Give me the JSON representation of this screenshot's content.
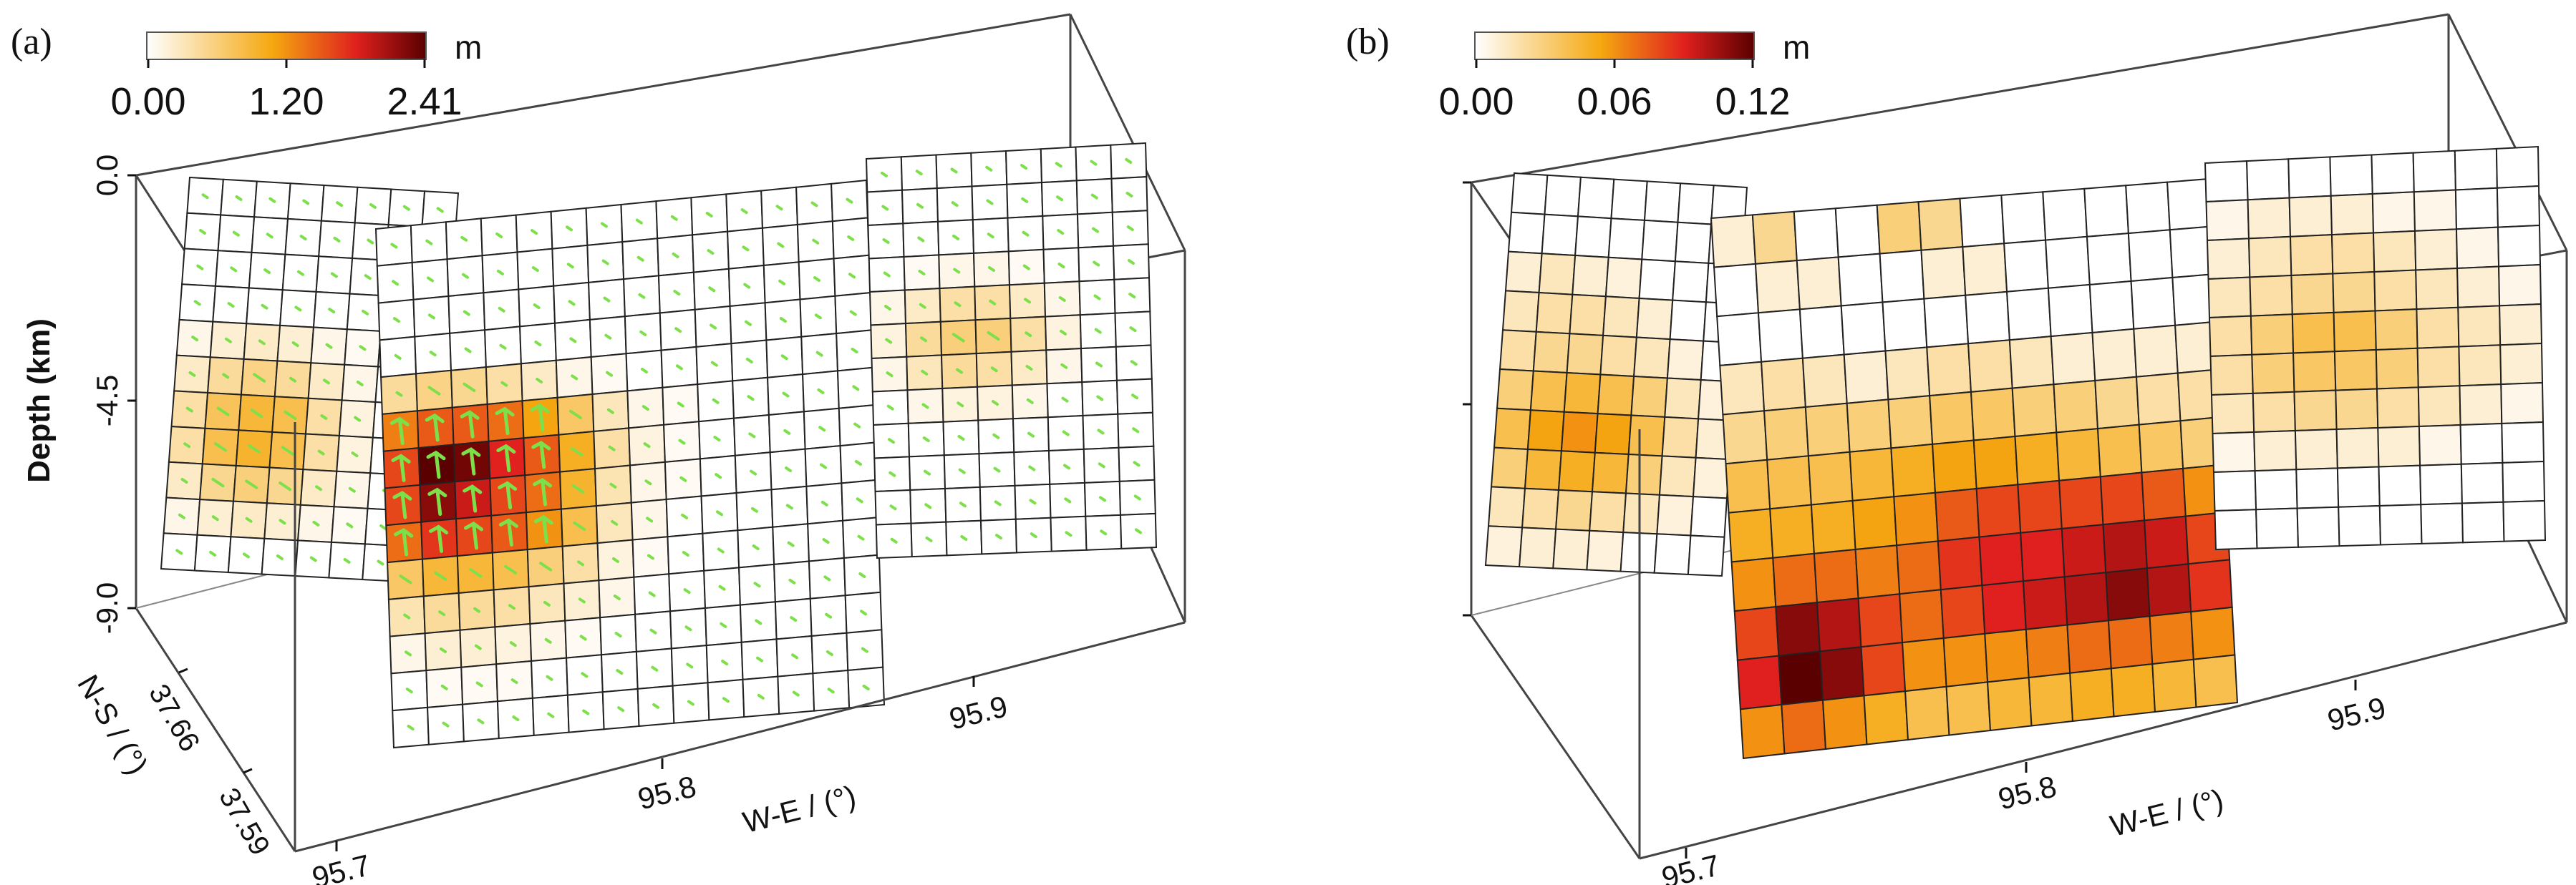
{
  "chart_data": [
    {
      "panel": "(a)",
      "type": "heatmap",
      "colorbar": {
        "unit": "m",
        "ticks": [
          "0.00",
          "1.20",
          "2.41"
        ],
        "range": [
          0,
          2.41
        ],
        "colors": [
          "#ffffff",
          "#f5a810",
          "#e0201e",
          "#5a0000"
        ]
      },
      "z_axis": {
        "label": "Depth (km)",
        "ticks": [
          "0.0",
          "-4.5",
          "-9.0"
        ]
      },
      "y_axis": {
        "label": "N-S / (°)",
        "ticks": [
          "37.66",
          "37.59"
        ]
      },
      "x_axis": {
        "label": "W-E / (°)",
        "ticks": [
          "95.7",
          "95.8",
          "95.9"
        ]
      },
      "slip_vectors": true,
      "segments": [
        {
          "name": "west",
          "cols": 8,
          "rows": 11,
          "values": [
            [
              0,
              0,
              0,
              0,
              0,
              0,
              0,
              0
            ],
            [
              0,
              0,
              0,
              0,
              0,
              0,
              0,
              0
            ],
            [
              0,
              0,
              0,
              0,
              0,
              0,
              0,
              0
            ],
            [
              0,
              0,
              0,
              0,
              0,
              0,
              0,
              0
            ],
            [
              0.1,
              0.2,
              0.25,
              0.2,
              0.1,
              0.05,
              0,
              0
            ],
            [
              0.25,
              0.45,
              0.55,
              0.45,
              0.25,
              0.1,
              0,
              0
            ],
            [
              0.4,
              0.75,
              0.9,
              0.8,
              0.4,
              0.15,
              0,
              0
            ],
            [
              0.4,
              0.8,
              0.95,
              0.8,
              0.4,
              0.15,
              0,
              0
            ],
            [
              0.25,
              0.5,
              0.6,
              0.5,
              0.25,
              0.1,
              0,
              0
            ],
            [
              0.1,
              0.2,
              0.25,
              0.2,
              0.1,
              0.05,
              0,
              0
            ],
            [
              0,
              0,
              0,
              0,
              0,
              0,
              0,
              0
            ]
          ]
        },
        {
          "name": "central",
          "cols": 14,
          "rows": 14,
          "values": [
            [
              0,
              0,
              0,
              0,
              0,
              0,
              0,
              0,
              0,
              0,
              0,
              0,
              0,
              0
            ],
            [
              0,
              0,
              0,
              0,
              0,
              0,
              0,
              0,
              0,
              0,
              0,
              0,
              0,
              0
            ],
            [
              0,
              0,
              0,
              0,
              0,
              0,
              0,
              0,
              0,
              0,
              0,
              0,
              0,
              0
            ],
            [
              0,
              0,
              0,
              0,
              0,
              0,
              0,
              0,
              0,
              0,
              0,
              0,
              0,
              0
            ],
            [
              0.45,
              0.55,
              0.5,
              0.4,
              0.25,
              0.1,
              0.05,
              0,
              0,
              0,
              0,
              0,
              0,
              0
            ],
            [
              1.3,
              1.5,
              1.5,
              1.4,
              1.1,
              0.7,
              0.3,
              0.1,
              0.05,
              0,
              0,
              0,
              0,
              0
            ],
            [
              1.6,
              2.41,
              2.3,
              1.8,
              1.5,
              1.0,
              0.4,
              0.15,
              0.05,
              0,
              0,
              0,
              0,
              0
            ],
            [
              1.6,
              2.2,
              1.9,
              1.6,
              1.4,
              0.95,
              0.35,
              0.1,
              0.05,
              0,
              0,
              0,
              0,
              0
            ],
            [
              1.4,
              1.7,
              1.6,
              1.5,
              1.2,
              0.8,
              0.3,
              0.1,
              0,
              0,
              0,
              0,
              0,
              0
            ],
            [
              0.7,
              0.9,
              0.9,
              0.8,
              0.6,
              0.4,
              0.15,
              0.05,
              0,
              0,
              0,
              0,
              0,
              0
            ],
            [
              0.35,
              0.45,
              0.45,
              0.4,
              0.3,
              0.2,
              0.1,
              0,
              0,
              0,
              0,
              0,
              0,
              0
            ],
            [
              0.1,
              0.2,
              0.2,
              0.15,
              0.1,
              0.05,
              0,
              0,
              0,
              0,
              0,
              0,
              0,
              0
            ],
            [
              0,
              0.05,
              0.05,
              0.05,
              0,
              0,
              0,
              0,
              0,
              0,
              0,
              0,
              0,
              0
            ],
            [
              0,
              0,
              0,
              0,
              0,
              0,
              0,
              0,
              0,
              0,
              0,
              0,
              0,
              0
            ]
          ]
        },
        {
          "name": "east",
          "cols": 8,
          "rows": 12,
          "values": [
            [
              0,
              0,
              0,
              0,
              0,
              0,
              0,
              0
            ],
            [
              0,
              0,
              0,
              0,
              0,
              0,
              0,
              0
            ],
            [
              0,
              0,
              0,
              0,
              0,
              0,
              0,
              0
            ],
            [
              0,
              0.05,
              0.1,
              0.1,
              0.05,
              0,
              0,
              0
            ],
            [
              0.1,
              0.25,
              0.4,
              0.4,
              0.25,
              0.1,
              0,
              0
            ],
            [
              0.15,
              0.45,
              0.6,
              0.6,
              0.4,
              0.15,
              0,
              0
            ],
            [
              0.1,
              0.3,
              0.45,
              0.4,
              0.25,
              0.1,
              0,
              0
            ],
            [
              0,
              0.1,
              0.15,
              0.15,
              0.1,
              0,
              0,
              0
            ],
            [
              0,
              0,
              0,
              0,
              0,
              0,
              0,
              0
            ],
            [
              0,
              0,
              0,
              0,
              0,
              0,
              0,
              0
            ],
            [
              0,
              0,
              0,
              0,
              0,
              0,
              0,
              0
            ],
            [
              0,
              0,
              0,
              0,
              0,
              0,
              0,
              0
            ]
          ]
        }
      ]
    },
    {
      "panel": "(b)",
      "type": "heatmap",
      "colorbar": {
        "unit": "m",
        "ticks": [
          "0.00",
          "0.06",
          "0.12"
        ],
        "range": [
          0,
          0.12
        ],
        "colors": [
          "#ffffff",
          "#f5a810",
          "#e0201e",
          "#5a0000"
        ]
      },
      "z_axis": {
        "label": "",
        "ticks": [
          "",
          "",
          ""
        ]
      },
      "x_axis": {
        "label": "W-E / (°)",
        "ticks": [
          "95.7",
          "95.8",
          "95.9"
        ]
      },
      "slip_vectors": false,
      "segments": [
        {
          "name": "west",
          "cols": 7,
          "rows": 10,
          "values": [
            [
              0,
              0,
              0,
              0,
              0,
              0,
              0
            ],
            [
              0,
              0,
              0,
              0,
              0,
              0,
              0
            ],
            [
              0.01,
              0.015,
              0.01,
              0.008,
              0,
              0,
              0
            ],
            [
              0.015,
              0.02,
              0.02,
              0.015,
              0.01,
              0,
              0
            ],
            [
              0.02,
              0.025,
              0.025,
              0.02,
              0.015,
              0.008,
              0
            ],
            [
              0.03,
              0.04,
              0.045,
              0.04,
              0.03,
              0.015,
              0.008
            ],
            [
              0.04,
              0.055,
              0.06,
              0.055,
              0.04,
              0.02,
              0.01
            ],
            [
              0.03,
              0.045,
              0.05,
              0.045,
              0.03,
              0.015,
              0.008
            ],
            [
              0.015,
              0.02,
              0.025,
              0.02,
              0.015,
              0.008,
              0
            ],
            [
              0.008,
              0.01,
              0.01,
              0.008,
              0,
              0,
              0
            ]
          ]
        },
        {
          "name": "central",
          "cols": 12,
          "rows": 11,
          "values": [
            [
              0.01,
              0.025,
              0,
              0,
              0.03,
              0.025,
              0,
              0,
              0,
              0,
              0,
              0
            ],
            [
              0,
              0.01,
              0.01,
              0,
              0,
              0.01,
              0.01,
              0,
              0,
              0,
              0,
              0
            ],
            [
              0,
              0,
              0,
              0,
              0,
              0,
              0,
              0,
              0,
              0,
              0,
              0
            ],
            [
              0.015,
              0.02,
              0.015,
              0.01,
              0.015,
              0.02,
              0.02,
              0.015,
              0.01,
              0.01,
              0.01,
              0.01
            ],
            [
              0.025,
              0.03,
              0.03,
              0.03,
              0.03,
              0.035,
              0.035,
              0.03,
              0.03,
              0.025,
              0.02,
              0.02
            ],
            [
              0.04,
              0.04,
              0.04,
              0.045,
              0.05,
              0.055,
              0.055,
              0.05,
              0.045,
              0.04,
              0.035,
              0.03
            ],
            [
              0.05,
              0.05,
              0.05,
              0.055,
              0.06,
              0.075,
              0.08,
              0.08,
              0.08,
              0.08,
              0.075,
              0.06
            ],
            [
              0.06,
              0.07,
              0.07,
              0.065,
              0.07,
              0.085,
              0.09,
              0.09,
              0.095,
              0.1,
              0.095,
              0.08
            ],
            [
              0.08,
              0.11,
              0.1,
              0.08,
              0.07,
              0.08,
              0.09,
              0.095,
              0.1,
              0.11,
              0.1,
              0.085
            ],
            [
              0.09,
              0.12,
              0.11,
              0.08,
              0.06,
              0.06,
              0.06,
              0.065,
              0.07,
              0.07,
              0.065,
              0.06
            ],
            [
              0.06,
              0.07,
              0.06,
              0.05,
              0.04,
              0.04,
              0.045,
              0.045,
              0.05,
              0.05,
              0.045,
              0.04
            ]
          ]
        },
        {
          "name": "east",
          "cols": 8,
          "rows": 10,
          "values": [
            [
              0,
              0,
              0,
              0,
              0,
              0,
              0,
              0
            ],
            [
              0.005,
              0.01,
              0.01,
              0.01,
              0.005,
              0.005,
              0,
              0
            ],
            [
              0.01,
              0.015,
              0.02,
              0.02,
              0.015,
              0.01,
              0.005,
              0
            ],
            [
              0.015,
              0.02,
              0.025,
              0.025,
              0.02,
              0.015,
              0.01,
              0.005
            ],
            [
              0.02,
              0.03,
              0.04,
              0.04,
              0.03,
              0.02,
              0.015,
              0.01
            ],
            [
              0.02,
              0.03,
              0.035,
              0.035,
              0.03,
              0.02,
              0.015,
              0.01
            ],
            [
              0.015,
              0.02,
              0.025,
              0.025,
              0.02,
              0.015,
              0.01,
              0.005
            ],
            [
              0.005,
              0.01,
              0.01,
              0.01,
              0.01,
              0.005,
              0,
              0
            ],
            [
              0,
              0,
              0,
              0,
              0,
              0,
              0,
              0
            ],
            [
              0,
              0,
              0,
              0,
              0,
              0,
              0,
              0
            ]
          ]
        }
      ]
    }
  ]
}
